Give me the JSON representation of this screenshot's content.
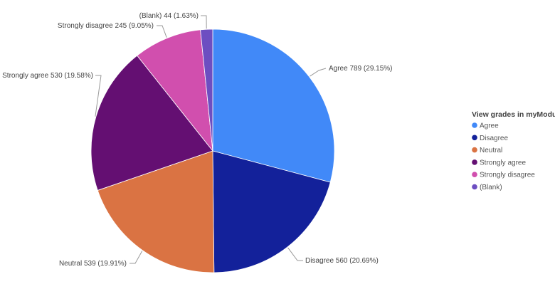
{
  "chart_data": {
    "type": "pie",
    "legend_title": "View grades in myModules",
    "legend_position": "right",
    "slices": [
      {
        "name": "Agree",
        "value": 789,
        "percent": "29.15%",
        "color": "#4189F8"
      },
      {
        "name": "Disagree",
        "value": 560,
        "percent": "20.69%",
        "color": "#13219A"
      },
      {
        "name": "Neutral",
        "value": 539,
        "percent": "19.91%",
        "color": "#DA7343"
      },
      {
        "name": "Strongly agree",
        "value": 530,
        "percent": "19.58%",
        "color": "#640F72"
      },
      {
        "name": "Strongly disagree",
        "value": 245,
        "percent": "9.05%",
        "color": "#D14FAE"
      },
      {
        "name": "(Blank)",
        "value": 44,
        "percent": "1.63%",
        "color": "#6D4EC1"
      }
    ],
    "data_labels": [
      "Agree 789 (29.15%)",
      "Disagree 560 (20.69%)",
      "Neutral 539 (19.91%)",
      "Strongly agree 530 (19.58%)",
      "Strongly disagree 245 (9.05%)",
      "(Blank) 44 (1.63%)"
    ]
  }
}
